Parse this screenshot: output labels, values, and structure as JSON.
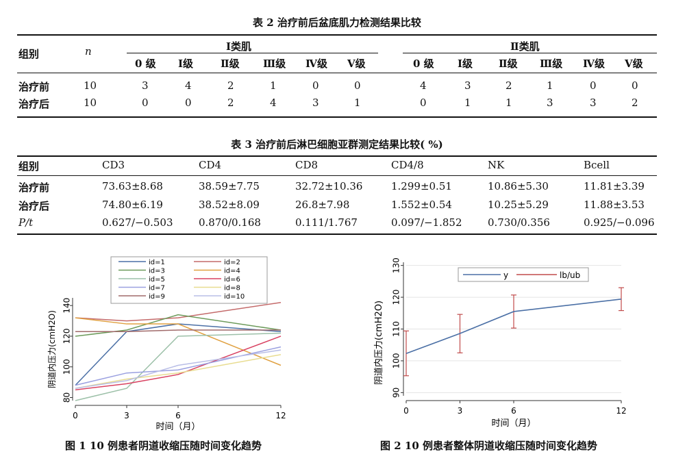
{
  "table2": {
    "caption": "表 2 治疗前后盆底肌力检测结果比较",
    "header_group": "组别",
    "header_n": "n",
    "group1": "Ⅰ类肌",
    "group2": "Ⅱ类肌",
    "grades": [
      "0 级",
      "Ⅰ级",
      "Ⅱ级",
      "Ⅲ级",
      "Ⅳ级",
      "Ⅴ级"
    ],
    "rows": [
      {
        "label": "治疗前",
        "n": "10",
        "g1": [
          "3",
          "4",
          "2",
          "1",
          "0",
          "0"
        ],
        "g2": [
          "4",
          "3",
          "2",
          "1",
          "0",
          "0"
        ]
      },
      {
        "label": "治疗后",
        "n": "10",
        "g1": [
          "0",
          "0",
          "2",
          "4",
          "3",
          "1"
        ],
        "g2": [
          "0",
          "1",
          "1",
          "3",
          "3",
          "2"
        ]
      }
    ]
  },
  "table3": {
    "caption": "表 3 治疗前后淋巴细胞亚群测定结果比较( %)",
    "headers": [
      "组别",
      "CD3",
      "CD4",
      "CD8",
      "CD4/8",
      "NK",
      "Bcell"
    ],
    "rows": [
      [
        "治疗前",
        "73.63±8.68",
        "38.59±7.75",
        "32.72±10.36",
        "1.299±0.51",
        "10.86±5.30",
        "11.81±3.39"
      ],
      [
        "治疗后",
        "74.80±6.19",
        "38.52±8.09",
        "26.8±7.98",
        "1.552±0.54",
        "10.25±5.29",
        "11.88±3.53"
      ],
      [
        "P/t",
        "0.627/−0.503",
        "0.870/0.168",
        "0.111/1.767",
        "0.097/−1.852",
        "0.730/0.356",
        "0.925/−0.096"
      ]
    ]
  },
  "figure1": {
    "caption": "图 1 10 例患者阴道收缩压随时间变化趋势",
    "chart_data": {
      "type": "line",
      "xlabel": "时间（月）",
      "ylabel": "阴道内压力(cmH2O)",
      "x": [
        0,
        3,
        6,
        12
      ],
      "xticks": [
        "0",
        "3",
        "6",
        "12"
      ],
      "yticks": [
        "80",
        "100",
        "120",
        "140"
      ],
      "ylim": [
        78,
        145
      ],
      "legend_position": "top",
      "series": [
        {
          "name": "id=1",
          "color": "#4a6fa5",
          "values": [
            88,
            123,
            128,
            123
          ]
        },
        {
          "name": "id=2",
          "color": "#c46a6a",
          "values": [
            132,
            130,
            132,
            142
          ]
        },
        {
          "name": "id=3",
          "color": "#6c9a5a",
          "values": [
            120,
            124,
            134,
            124
          ]
        },
        {
          "name": "id=4",
          "color": "#e0a040",
          "values": [
            132,
            128,
            128,
            101
          ]
        },
        {
          "name": "id=5",
          "color": "#9cc0a8",
          "values": [
            78,
            86,
            120,
            122
          ]
        },
        {
          "name": "id=6",
          "color": "#d84060",
          "values": [
            85,
            89,
            95,
            120
          ]
        },
        {
          "name": "id=7",
          "color": "#9aa0e0",
          "values": [
            88,
            96,
            98,
            113
          ]
        },
        {
          "name": "id=8",
          "color": "#e8dc90",
          "values": [
            86,
            92,
            96,
            108
          ]
        },
        {
          "name": "id=9",
          "color": "#a06a6a",
          "values": [
            123,
            123,
            124,
            124
          ]
        },
        {
          "name": "id=10",
          "color": "#b8bde6",
          "values": [
            86,
            91,
            101,
            111
          ]
        }
      ]
    }
  },
  "figure2": {
    "caption": "图 2 10 例患者整体阴道收缩压随时间变化趋势",
    "chart_data": {
      "type": "line",
      "xlabel": "时间（月）",
      "ylabel": "阴道内压力(cmH2O)",
      "x": [
        0,
        3,
        6,
        12
      ],
      "xticks": [
        "0",
        "3",
        "6",
        "12"
      ],
      "yticks": [
        "90",
        "100",
        "110",
        "120",
        "130"
      ],
      "ylim": [
        89,
        131
      ],
      "legend_position": "top",
      "series": [
        {
          "name": "y",
          "color": "#4a6fa5",
          "values": [
            102.3,
            108.6,
            115.5,
            119.4
          ]
        },
        {
          "name": "lb/ub",
          "color": "#c04a4a",
          "lower": [
            95.3,
            102.5,
            110.3,
            115.8
          ],
          "upper": [
            109.4,
            114.6,
            120.7,
            123.0
          ]
        }
      ]
    }
  }
}
